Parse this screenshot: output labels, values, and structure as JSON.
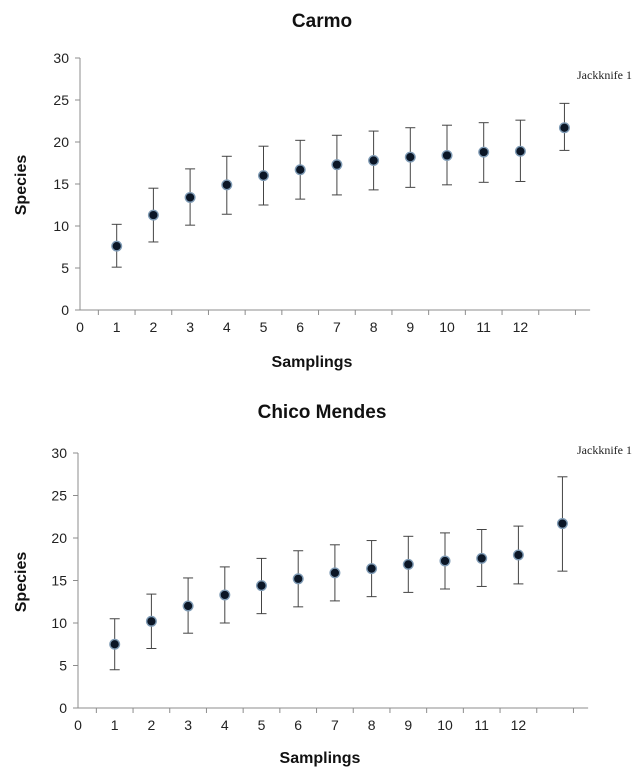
{
  "chart_data": [
    {
      "type": "scatter",
      "title": "Carmo",
      "xlabel": "Samplings",
      "ylabel": "Species",
      "xlim": [
        0,
        13.9
      ],
      "ylim": [
        0,
        30
      ],
      "x_ticks": [
        0,
        1,
        2,
        3,
        4,
        5,
        6,
        7,
        8,
        9,
        10,
        11,
        12
      ],
      "y_ticks": [
        0,
        5,
        10,
        15,
        20,
        25,
        30
      ],
      "grid": false,
      "series": [
        {
          "x": [
            1,
            2,
            3,
            4,
            5,
            6,
            7,
            8,
            9,
            10,
            11,
            12
          ],
          "values": [
            7.6,
            11.3,
            13.4,
            14.9,
            16.0,
            16.7,
            17.3,
            17.8,
            18.2,
            18.4,
            18.8,
            18.9
          ],
          "err_low": [
            5.1,
            8.1,
            10.1,
            11.4,
            12.5,
            13.2,
            13.7,
            14.3,
            14.6,
            14.9,
            15.2,
            15.3
          ],
          "err_high": [
            10.2,
            14.5,
            16.8,
            18.3,
            19.5,
            20.2,
            20.8,
            21.3,
            21.7,
            22.0,
            22.3,
            22.6
          ]
        }
      ],
      "estimator": {
        "label": "Jackknife 1",
        "x": 13.2,
        "value": 21.7,
        "err_low": 19.0,
        "err_high": 24.6
      }
    },
    {
      "type": "scatter",
      "title": "Chico Mendes",
      "xlabel": "Samplings",
      "ylabel": "Species",
      "xlim": [
        0,
        13.9
      ],
      "ylim": [
        0,
        30
      ],
      "x_ticks": [
        0,
        1,
        2,
        3,
        4,
        5,
        6,
        7,
        8,
        9,
        10,
        11,
        12
      ],
      "y_ticks": [
        0,
        5,
        10,
        15,
        20,
        25,
        30
      ],
      "grid": false,
      "series": [
        {
          "x": [
            1,
            2,
            3,
            4,
            5,
            6,
            7,
            8,
            9,
            10,
            11,
            12
          ],
          "values": [
            7.5,
            10.2,
            12.0,
            13.3,
            14.4,
            15.2,
            15.9,
            16.4,
            16.9,
            17.3,
            17.6,
            18.0
          ],
          "err_low": [
            4.5,
            7.0,
            8.8,
            10.0,
            11.1,
            11.9,
            12.6,
            13.1,
            13.6,
            14.0,
            14.3,
            14.6
          ],
          "err_high": [
            10.5,
            13.4,
            15.3,
            16.6,
            17.6,
            18.5,
            19.2,
            19.7,
            20.2,
            20.6,
            21.0,
            21.4
          ]
        }
      ],
      "estimator": {
        "label": "Jackknife 1",
        "x": 13.2,
        "value": 21.7,
        "err_low": 16.1,
        "err_high": 27.2
      }
    }
  ]
}
